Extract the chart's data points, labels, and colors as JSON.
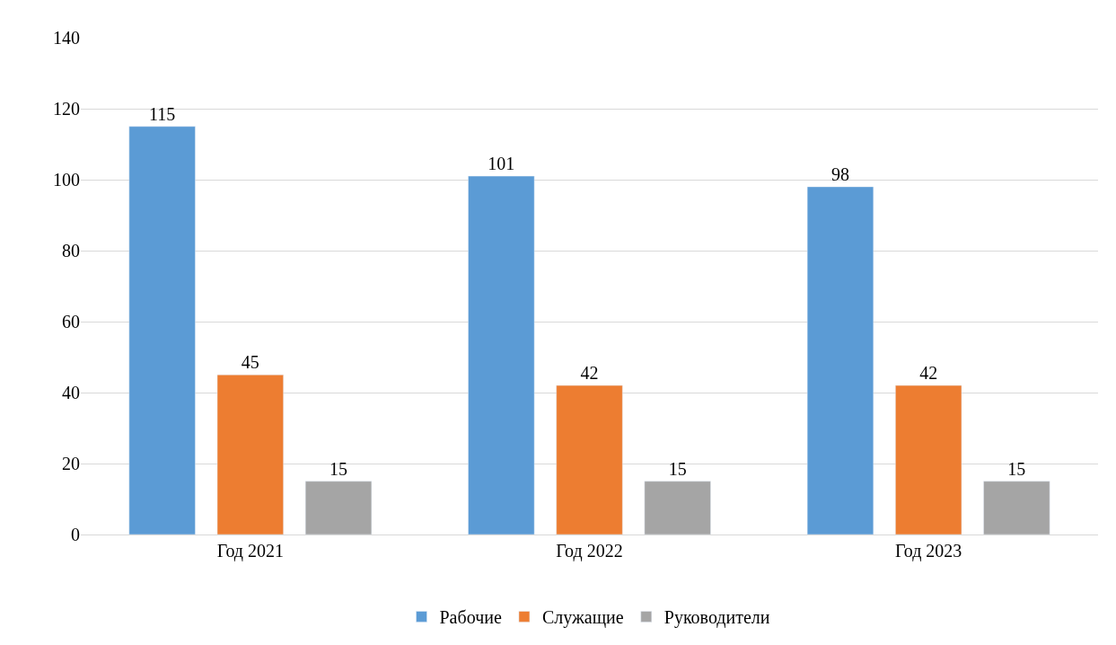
{
  "chart_data": {
    "type": "bar",
    "categories": [
      "Год 2021",
      "Год 2022",
      "Год 2023"
    ],
    "series": [
      {
        "name": "Рабочие",
        "color": "#5b9bd5",
        "values": [
          115,
          101,
          98
        ]
      },
      {
        "name": "Служащие",
        "color": "#ed7d31",
        "values": [
          45,
          42,
          42
        ]
      },
      {
        "name": "Руководители",
        "color": "#a5a5a5",
        "values": [
          15,
          15,
          15
        ]
      }
    ],
    "ylim": [
      0,
      140
    ],
    "yticks": [
      0,
      20,
      40,
      60,
      80,
      100,
      120,
      140
    ],
    "grid": "y",
    "legend": "bottom",
    "data_labels": true
  }
}
